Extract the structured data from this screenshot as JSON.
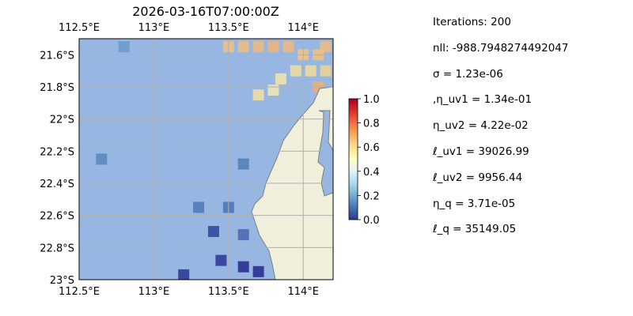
{
  "chart_data": {
    "type": "heatmap",
    "title": "2026-03-16T07:00:00Z",
    "xlabel": "",
    "ylabel": "",
    "x_ticks": [
      "112.5°E",
      "113°E",
      "113.5°E",
      "114°E"
    ],
    "x_tick_values": [
      112.5,
      113.0,
      113.5,
      114.0
    ],
    "y_ticks": [
      "21.6°S",
      "21.8°S",
      "22°S",
      "22.2°S",
      "22.4°S",
      "22.6°S",
      "22.8°S",
      "23°S"
    ],
    "y_tick_values": [
      -21.6,
      -21.8,
      -22.0,
      -22.2,
      -22.4,
      -22.6,
      -22.8,
      -23.0
    ],
    "xlim": [
      112.5,
      114.2
    ],
    "ylim": [
      -23.0,
      -21.5
    ],
    "grid": true,
    "colorbar": {
      "label": "",
      "ticks": [
        "0.0",
        "0.2",
        "0.4",
        "0.6",
        "0.8",
        "1.0"
      ],
      "tick_values": [
        0.0,
        0.2,
        0.4,
        0.6,
        0.8,
        1.0
      ],
      "range": [
        0.0,
        1.0
      ],
      "colormap": "RdYlBu_r"
    },
    "colors": {
      "ocean": "#97b6e1",
      "land": "#efefdb",
      "coast": "#7f7f7f",
      "grid": "#b0b0b0"
    },
    "cells": [
      {
        "lon": 114.15,
        "lat": -21.55,
        "v": 0.67
      },
      {
        "lon": 114.1,
        "lat": -21.6,
        "v": 0.66
      },
      {
        "lon": 114.0,
        "lat": -21.6,
        "v": 0.65
      },
      {
        "lon": 113.9,
        "lat": -21.55,
        "v": 0.68
      },
      {
        "lon": 113.8,
        "lat": -21.55,
        "v": 0.69
      },
      {
        "lon": 113.7,
        "lat": -21.55,
        "v": 0.68
      },
      {
        "lon": 113.6,
        "lat": -21.55,
        "v": 0.67
      },
      {
        "lon": 113.5,
        "lat": -21.55,
        "v": 0.66
      },
      {
        "lon": 114.15,
        "lat": -21.7,
        "v": 0.62
      },
      {
        "lon": 114.05,
        "lat": -21.7,
        "v": 0.6
      },
      {
        "lon": 113.95,
        "lat": -21.7,
        "v": 0.59
      },
      {
        "lon": 113.85,
        "lat": -21.75,
        "v": 0.56
      },
      {
        "lon": 114.1,
        "lat": -21.8,
        "v": 0.7
      },
      {
        "lon": 113.8,
        "lat": -21.82,
        "v": 0.55
      },
      {
        "lon": 113.7,
        "lat": -21.85,
        "v": 0.58
      },
      {
        "lon": 114.18,
        "lat": -22.0,
        "v": 0.72
      },
      {
        "lon": 114.18,
        "lat": -22.08,
        "v": 0.78
      },
      {
        "lon": 112.8,
        "lat": -21.55,
        "v": 0.16
      },
      {
        "lon": 112.65,
        "lat": -22.25,
        "v": 0.12
      },
      {
        "lon": 113.6,
        "lat": -22.28,
        "v": 0.1
      },
      {
        "lon": 113.3,
        "lat": -22.55,
        "v": 0.09
      },
      {
        "lon": 113.5,
        "lat": -22.55,
        "v": 0.08
      },
      {
        "lon": 113.4,
        "lat": -22.7,
        "v": 0.04
      },
      {
        "lon": 113.6,
        "lat": -22.72,
        "v": 0.06
      },
      {
        "lon": 113.45,
        "lat": -22.88,
        "v": 0.02
      },
      {
        "lon": 113.6,
        "lat": -22.92,
        "v": 0.0
      },
      {
        "lon": 113.7,
        "lat": -22.95,
        "v": 0.0
      },
      {
        "lon": 113.2,
        "lat": -22.97,
        "v": 0.02
      }
    ]
  },
  "params": [
    "Iterations: 200",
    "nll: -988.7948274492047",
    "σ = 1.23e-06",
    ",η_uv1 = 1.34e-01",
    "η_uv2 = 4.22e-02",
    "ℓ_uv1 = 39026.99",
    "ℓ_uv2 = 9956.44",
    "η_q = 3.71e-05",
    "ℓ_q = 35149.05"
  ]
}
